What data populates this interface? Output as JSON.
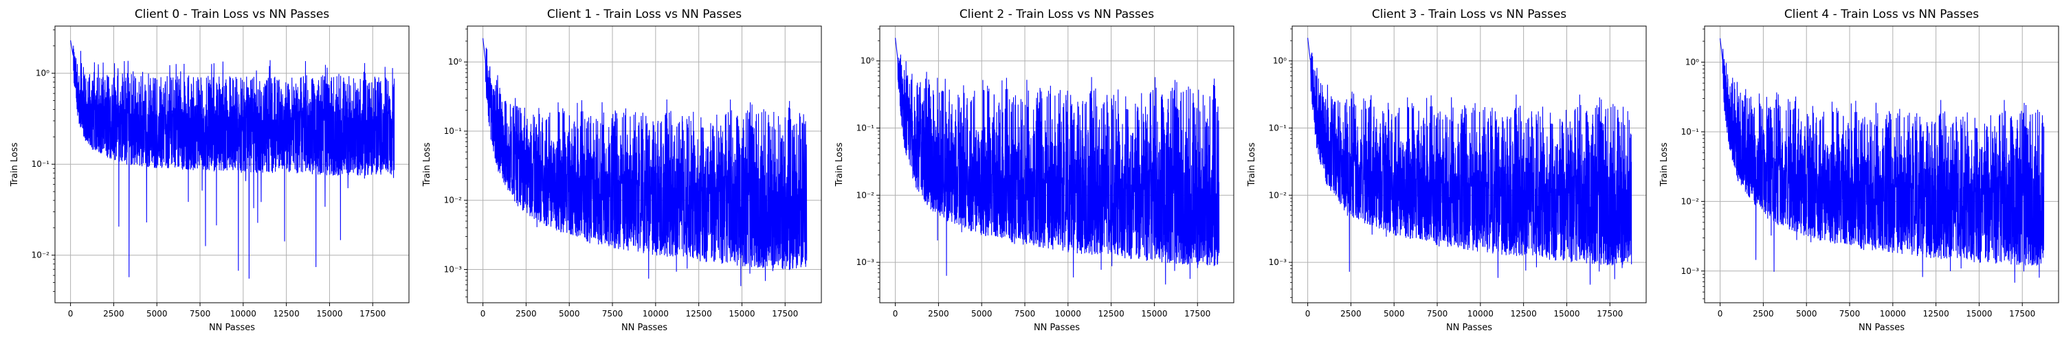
{
  "figure": {
    "background": "#ffffff",
    "line_color": "#0000ff"
  },
  "chart_data": [
    {
      "type": "line",
      "title": "Client 0 - Train Loss vs NN Passes",
      "xlabel": "NN Passes",
      "ylabel": "Train Loss",
      "xlim": [
        -900,
        19600
      ],
      "ylim": [
        0.003,
        3.3
      ],
      "yscale": "log",
      "grid": true,
      "xticks": [
        0,
        2500,
        5000,
        7500,
        10000,
        12500,
        15000,
        17500
      ],
      "xtick_labels": [
        "0",
        "2500",
        "5000",
        "7500",
        "10000",
        "12500",
        "15000",
        "17500"
      ],
      "yticks": [
        0.01,
        0.1,
        1
      ],
      "ytick_labels": [
        "10⁻²",
        "10⁻¹",
        "10⁰"
      ],
      "series": [
        {
          "color": "#0000ff",
          "x": [
            0,
            250,
            500,
            1000,
            2000,
            3000,
            5000,
            7500,
            10000,
            12500,
            15000,
            17500,
            18750
          ],
          "y_upper": [
            2.4,
            2.0,
            1.4,
            1.15,
            1.05,
            1.0,
            0.95,
            0.95,
            0.95,
            0.95,
            0.95,
            0.95,
            0.95
          ],
          "y_median": [
            2.3,
            1.2,
            0.6,
            0.45,
            0.4,
            0.36,
            0.33,
            0.32,
            0.31,
            0.3,
            0.3,
            0.3,
            0.3
          ],
          "y_lower": [
            2.2,
            0.6,
            0.25,
            0.15,
            0.12,
            0.1,
            0.09,
            0.085,
            0.08,
            0.08,
            0.075,
            0.075,
            0.07
          ],
          "y_min": 0.0045
        }
      ]
    },
    {
      "type": "line",
      "title": "Client 1 - Train Loss vs NN Passes",
      "xlabel": "NN Passes",
      "ylabel": "Train Loss",
      "xlim": [
        -900,
        19600
      ],
      "ylim": [
        0.00033,
        3.3
      ],
      "yscale": "log",
      "grid": true,
      "xticks": [
        0,
        2500,
        5000,
        7500,
        10000,
        12500,
        15000,
        17500
      ],
      "xtick_labels": [
        "0",
        "2500",
        "5000",
        "7500",
        "10000",
        "12500",
        "15000",
        "17500"
      ],
      "yticks": [
        0.001,
        0.01,
        0.1,
        1
      ],
      "ytick_labels": [
        "10⁻³",
        "10⁻²",
        "10⁻¹",
        "10⁰"
      ],
      "series": [
        {
          "color": "#0000ff",
          "x": [
            0,
            250,
            500,
            1000,
            2000,
            3000,
            5000,
            7500,
            10000,
            12500,
            15000,
            17500,
            18750
          ],
          "y_upper": [
            2.3,
            1.5,
            0.7,
            0.35,
            0.25,
            0.2,
            0.2,
            0.2,
            0.2,
            0.2,
            0.2,
            0.2,
            0.2
          ],
          "y_median": [
            2.2,
            0.6,
            0.2,
            0.08,
            0.04,
            0.03,
            0.022,
            0.018,
            0.015,
            0.013,
            0.012,
            0.011,
            0.011
          ],
          "y_lower": [
            2.1,
            0.2,
            0.06,
            0.02,
            0.008,
            0.005,
            0.003,
            0.002,
            0.0016,
            0.0013,
            0.0011,
            0.001,
            0.001
          ],
          "y_min": 0.0005
        }
      ]
    },
    {
      "type": "line",
      "title": "Client 2 - Train Loss vs NN Passes",
      "xlabel": "NN Passes",
      "ylabel": "Train Loss",
      "xlim": [
        -900,
        19600
      ],
      "ylim": [
        0.00025,
        3.3
      ],
      "yscale": "log",
      "grid": true,
      "xticks": [
        0,
        2500,
        5000,
        7500,
        10000,
        12500,
        15000,
        17500
      ],
      "xtick_labels": [
        "0",
        "2500",
        "5000",
        "7500",
        "10000",
        "12500",
        "15000",
        "17500"
      ],
      "yticks": [
        0.001,
        0.01,
        0.1,
        1
      ],
      "ytick_labels": [
        "10⁻³",
        "10⁻²",
        "10⁻¹",
        "10⁰"
      ],
      "series": [
        {
          "color": "#0000ff",
          "x": [
            0,
            250,
            500,
            1000,
            2000,
            3000,
            5000,
            7500,
            10000,
            12500,
            15000,
            17500,
            18750
          ],
          "y_upper": [
            2.3,
            1.5,
            0.8,
            0.5,
            0.45,
            0.4,
            0.4,
            0.4,
            0.4,
            0.4,
            0.4,
            0.4,
            0.4
          ],
          "y_median": [
            2.2,
            0.6,
            0.2,
            0.07,
            0.035,
            0.025,
            0.02,
            0.016,
            0.014,
            0.012,
            0.011,
            0.01,
            0.01
          ],
          "y_lower": [
            2.1,
            0.2,
            0.05,
            0.015,
            0.006,
            0.004,
            0.0025,
            0.0018,
            0.0014,
            0.0012,
            0.001,
            0.0009,
            0.0009
          ],
          "y_min": 0.0004
        }
      ]
    },
    {
      "type": "line",
      "title": "Client 3 - Train Loss vs NN Passes",
      "xlabel": "NN Passes",
      "ylabel": "Train Loss",
      "xlim": [
        -900,
        19600
      ],
      "ylim": [
        0.00025,
        3.3
      ],
      "yscale": "log",
      "grid": true,
      "xticks": [
        0,
        2500,
        5000,
        7500,
        10000,
        12500,
        15000,
        17500
      ],
      "xtick_labels": [
        "0",
        "2500",
        "5000",
        "7500",
        "10000",
        "12500",
        "15000",
        "17500"
      ],
      "yticks": [
        0.001,
        0.01,
        0.1,
        1
      ],
      "ytick_labels": [
        "10⁻³",
        "10⁻²",
        "10⁻¹",
        "10⁰"
      ],
      "series": [
        {
          "color": "#0000ff",
          "x": [
            0,
            250,
            500,
            1000,
            2000,
            3000,
            5000,
            7500,
            10000,
            12500,
            15000,
            17500,
            18750
          ],
          "y_upper": [
            2.3,
            1.5,
            0.7,
            0.35,
            0.25,
            0.22,
            0.22,
            0.22,
            0.22,
            0.22,
            0.22,
            0.22,
            0.22
          ],
          "y_median": [
            2.2,
            0.6,
            0.2,
            0.07,
            0.035,
            0.025,
            0.018,
            0.015,
            0.013,
            0.011,
            0.01,
            0.01,
            0.01
          ],
          "y_lower": [
            2.1,
            0.2,
            0.05,
            0.015,
            0.006,
            0.004,
            0.0025,
            0.0018,
            0.0014,
            0.0012,
            0.001,
            0.0009,
            0.0009
          ],
          "y_min": 0.0004
        }
      ]
    },
    {
      "type": "line",
      "title": "Client 4 - Train Loss vs NN Passes",
      "xlabel": "NN Passes",
      "ylabel": "Train Loss",
      "xlim": [
        -900,
        19600
      ],
      "ylim": [
        0.00035,
        3.3
      ],
      "yscale": "log",
      "grid": true,
      "xticks": [
        0,
        2500,
        5000,
        7500,
        10000,
        12500,
        15000,
        17500
      ],
      "xtick_labels": [
        "0",
        "2500",
        "5000",
        "7500",
        "10000",
        "12500",
        "15000",
        "17500"
      ],
      "yticks": [
        0.001,
        0.01,
        0.1,
        1
      ],
      "ytick_labels": [
        "10⁻³",
        "10⁻²",
        "10⁻¹",
        "10⁰"
      ],
      "series": [
        {
          "color": "#0000ff",
          "x": [
            0,
            250,
            500,
            1000,
            2000,
            3000,
            5000,
            7500,
            10000,
            12500,
            15000,
            17500,
            18750
          ],
          "y_upper": [
            2.3,
            1.5,
            0.7,
            0.4,
            0.3,
            0.25,
            0.22,
            0.2,
            0.2,
            0.2,
            0.2,
            0.2,
            0.2
          ],
          "y_median": [
            2.2,
            0.6,
            0.2,
            0.08,
            0.04,
            0.03,
            0.022,
            0.018,
            0.016,
            0.014,
            0.013,
            0.012,
            0.012
          ],
          "y_lower": [
            2.1,
            0.2,
            0.06,
            0.02,
            0.008,
            0.005,
            0.003,
            0.0022,
            0.0018,
            0.0015,
            0.0013,
            0.0012,
            0.0012
          ],
          "y_min": 0.0006
        }
      ]
    }
  ]
}
